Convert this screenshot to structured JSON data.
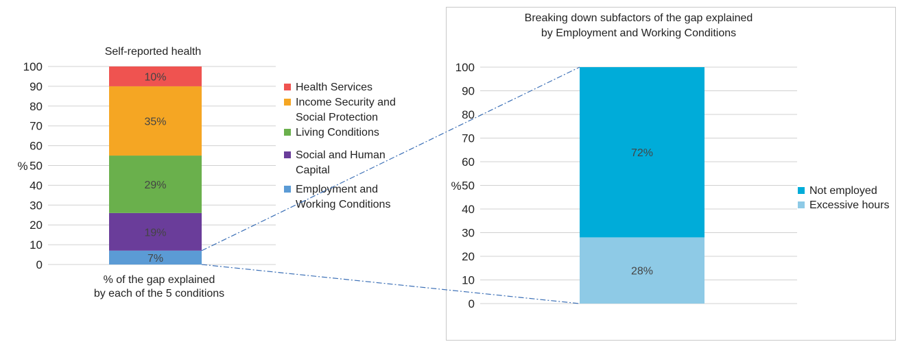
{
  "chart_data": [
    {
      "type": "bar",
      "stacked": true,
      "title": "Self-reported health",
      "ylabel": "%",
      "xlabel": "% of the gap explained\nby each of the 5 conditions",
      "ylim": [
        0,
        100
      ],
      "yticks": [
        0,
        10,
        20,
        30,
        40,
        50,
        60,
        70,
        80,
        90,
        100
      ],
      "grid": true,
      "legend_position": "right",
      "series": [
        {
          "name": "Employment and Working Conditions",
          "value": 7,
          "label": "7%",
          "color": "#5b9bd5"
        },
        {
          "name": "Social and Human Capital",
          "value": 19,
          "label": "19%",
          "color": "#6a3d9a"
        },
        {
          "name": "Living Conditions",
          "value": 29,
          "label": "29%",
          "color": "#6ab04c"
        },
        {
          "name": "Income Security and Social Protection",
          "value": 35,
          "label": "35%",
          "color": "#f5a623"
        },
        {
          "name": "Health Services",
          "value": 10,
          "label": "10%",
          "color": "#ef5350"
        }
      ],
      "legend": [
        {
          "lines": [
            "Health Services"
          ],
          "color": "#ef5350"
        },
        {
          "lines": [
            "Income Security and",
            "Social Protection"
          ],
          "color": "#f5a623"
        },
        {
          "lines": [
            "Living Conditions"
          ],
          "color": "#6ab04c"
        },
        {
          "lines": [
            "Social and Human",
            "Capital"
          ],
          "color": "#6a3d9a"
        },
        {
          "lines": [
            "Employment and",
            "Working Conditions"
          ],
          "color": "#5b9bd5"
        }
      ]
    },
    {
      "type": "bar",
      "stacked": true,
      "title": "Breaking down subfactors of the gap explained\nby Employment and Working Conditions",
      "ylabel": "%",
      "xlabel": "",
      "ylim": [
        0,
        100
      ],
      "yticks": [
        0,
        10,
        20,
        30,
        40,
        50,
        60,
        70,
        80,
        90,
        100
      ],
      "grid": true,
      "legend_position": "right",
      "series": [
        {
          "name": "Excessive hours",
          "value": 28,
          "label": "28%",
          "color": "#8ecae6"
        },
        {
          "name": "Not employed",
          "value": 72,
          "label": "72%",
          "color": "#00acd9"
        }
      ],
      "legend": [
        {
          "lines": [
            "Not employed"
          ],
          "color": "#00acd9"
        },
        {
          "lines": [
            "Excessive hours"
          ],
          "color": "#8ecae6"
        }
      ]
    }
  ]
}
